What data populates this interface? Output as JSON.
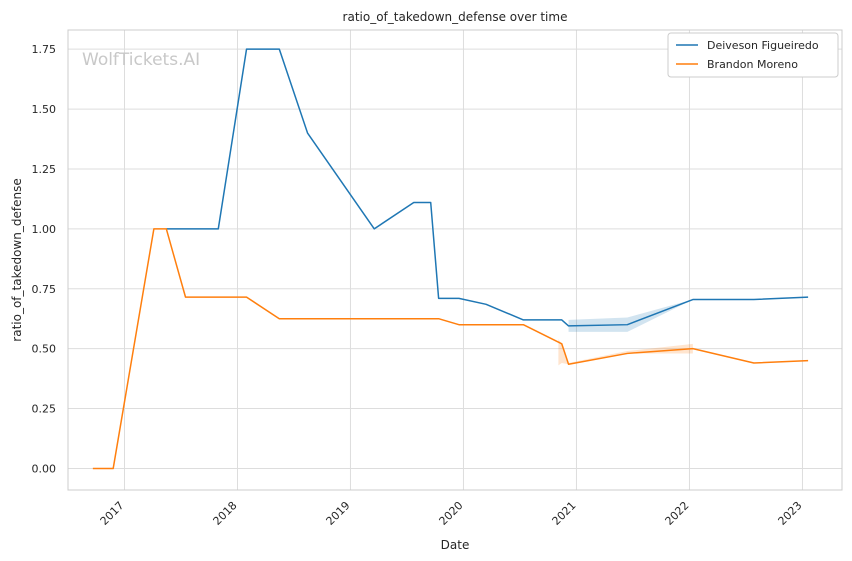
{
  "chart_data": {
    "type": "line",
    "title": "ratio_of_takedown_defense over time",
    "xlabel": "Date",
    "ylabel": "ratio_of_takedown_defense",
    "watermark": "WolfTickets.AI",
    "xlim": [
      2016.5,
      2023.35
    ],
    "ylim": [
      -0.09,
      1.83
    ],
    "x_ticks": [
      2017,
      2018,
      2019,
      2020,
      2021,
      2022,
      2023
    ],
    "x_tick_labels": [
      "2017",
      "2018",
      "2019",
      "2020",
      "2021",
      "2022",
      "2023"
    ],
    "y_ticks": [
      0.0,
      0.25,
      0.5,
      0.75,
      1.0,
      1.25,
      1.5,
      1.75
    ],
    "y_tick_labels": [
      "0.00",
      "0.25",
      "0.50",
      "0.75",
      "1.00",
      "1.25",
      "1.50",
      "1.75"
    ],
    "grid": true,
    "legend_position": "top-right",
    "series": [
      {
        "name": "Deiveson Figueiredo",
        "color": "#1f77b4",
        "x": [
          2017.37,
          2017.83,
          2018.08,
          2018.37,
          2018.62,
          2019.21,
          2019.56,
          2019.71,
          2019.78,
          2019.96,
          2020.2,
          2020.53,
          2020.87,
          2020.93,
          2021.45,
          2022.03,
          2022.57,
          2023.05
        ],
        "y": [
          1.0,
          1.0,
          1.75,
          1.75,
          1.4,
          1.0,
          1.11,
          1.11,
          0.71,
          0.71,
          0.685,
          0.62,
          0.62,
          0.595,
          0.6,
          0.705,
          0.705,
          0.715
        ],
        "band": {
          "x": [
            2020.93,
            2021.45,
            2022.03
          ],
          "lower": [
            0.57,
            0.57,
            0.705
          ],
          "upper": [
            0.62,
            0.63,
            0.705
          ]
        }
      },
      {
        "name": "Brandon Moreno",
        "color": "#ff7f0e",
        "x": [
          2016.72,
          2016.9,
          2017.26,
          2017.37,
          2017.54,
          2018.08,
          2018.37,
          2019.78,
          2019.96,
          2020.53,
          2020.87,
          2020.93,
          2021.45,
          2022.03,
          2022.57,
          2023.05
        ],
        "y": [
          0.0,
          0.0,
          1.0,
          1.0,
          0.715,
          0.715,
          0.625,
          0.625,
          0.6,
          0.6,
          0.52,
          0.435,
          0.48,
          0.5,
          0.44,
          0.45
        ],
        "band": {
          "x": [
            2020.84,
            2020.87,
            2020.93,
            2021.45,
            2022.03
          ],
          "lower": [
            0.43,
            0.44,
            0.435,
            0.48,
            0.48
          ],
          "upper": [
            0.54,
            0.52,
            0.44,
            0.49,
            0.52
          ]
        }
      }
    ]
  }
}
